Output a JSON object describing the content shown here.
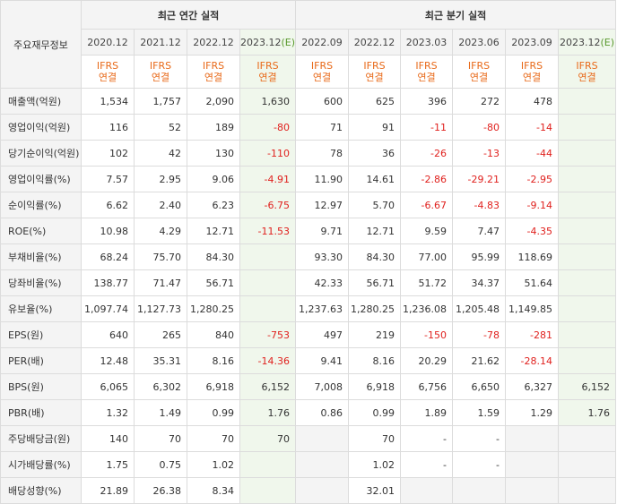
{
  "header": {
    "label": "주요재무정보",
    "annual": "최근 연간 실적",
    "quarter": "최근 분기 실적"
  },
  "periods": [
    {
      "label": "2020.12",
      "estimate": false
    },
    {
      "label": "2021.12",
      "estimate": false
    },
    {
      "label": "2022.12",
      "estimate": false
    },
    {
      "label": "2023.12(E)",
      "estimate": true
    },
    {
      "label": "2022.09",
      "estimate": false
    },
    {
      "label": "2022.12",
      "estimate": false
    },
    {
      "label": "2023.03",
      "estimate": false
    },
    {
      "label": "2023.06",
      "estimate": false
    },
    {
      "label": "2023.09",
      "estimate": false
    },
    {
      "label": "2023.12(E)",
      "estimate": true
    }
  ],
  "ifrs": {
    "line1": "IFRS",
    "line2": "연결"
  },
  "rows": [
    {
      "label": "매출액(억원)",
      "values": [
        "1,534",
        "1,757",
        "2,090",
        "1,630",
        "600",
        "625",
        "396",
        "272",
        "478",
        ""
      ]
    },
    {
      "label": "영업이익(억원)",
      "values": [
        "116",
        "52",
        "189",
        "-80",
        "71",
        "91",
        "-11",
        "-80",
        "-14",
        ""
      ]
    },
    {
      "label": "당기순이익(억원)",
      "values": [
        "102",
        "42",
        "130",
        "-110",
        "78",
        "36",
        "-26",
        "-13",
        "-44",
        ""
      ]
    },
    {
      "label": "영업이익률(%)",
      "values": [
        "7.57",
        "2.95",
        "9.06",
        "-4.91",
        "11.90",
        "14.61",
        "-2.86",
        "-29.21",
        "-2.95",
        ""
      ]
    },
    {
      "label": "순이익률(%)",
      "values": [
        "6.62",
        "2.40",
        "6.23",
        "-6.75",
        "12.97",
        "5.70",
        "-6.67",
        "-4.83",
        "-9.14",
        ""
      ]
    },
    {
      "label": "ROE(%)",
      "values": [
        "10.98",
        "4.29",
        "12.71",
        "-11.53",
        "9.71",
        "12.71",
        "9.59",
        "7.47",
        "-4.35",
        ""
      ]
    },
    {
      "label": "부채비율(%)",
      "values": [
        "68.24",
        "75.70",
        "84.30",
        "",
        "93.30",
        "84.30",
        "77.00",
        "95.99",
        "118.69",
        ""
      ]
    },
    {
      "label": "당좌비율(%)",
      "values": [
        "138.77",
        "71.47",
        "56.71",
        "",
        "42.33",
        "56.71",
        "51.72",
        "34.37",
        "51.64",
        ""
      ]
    },
    {
      "label": "유보율(%)",
      "values": [
        "1,097.74",
        "1,127.73",
        "1,280.25",
        "",
        "1,237.63",
        "1,280.25",
        "1,236.08",
        "1,205.48",
        "1,149.85",
        ""
      ]
    },
    {
      "label": "EPS(원)",
      "values": [
        "640",
        "265",
        "840",
        "-753",
        "497",
        "219",
        "-150",
        "-78",
        "-281",
        ""
      ]
    },
    {
      "label": "PER(배)",
      "values": [
        "12.48",
        "35.31",
        "8.16",
        "-14.36",
        "9.41",
        "8.16",
        "20.29",
        "21.62",
        "-28.14",
        ""
      ]
    },
    {
      "label": "BPS(원)",
      "values": [
        "6,065",
        "6,302",
        "6,918",
        "6,152",
        "7,008",
        "6,918",
        "6,756",
        "6,650",
        "6,327",
        "6,152"
      ]
    },
    {
      "label": "PBR(배)",
      "values": [
        "1.32",
        "1.49",
        "0.99",
        "1.76",
        "0.86",
        "0.99",
        "1.89",
        "1.59",
        "1.29",
        "1.76"
      ]
    },
    {
      "label": "주당배당금(원)",
      "values": [
        "140",
        "70",
        "70",
        "70",
        "",
        "70",
        "-",
        "-",
        "",
        ""
      ]
    },
    {
      "label": "시가배당률(%)",
      "values": [
        "1.75",
        "0.75",
        "1.02",
        "",
        "",
        "1.02",
        "-",
        "-",
        "",
        ""
      ]
    },
    {
      "label": "배당성향(%)",
      "values": [
        "21.89",
        "26.38",
        "8.34",
        "",
        "",
        "32.01",
        "",
        "",
        "",
        ""
      ]
    }
  ],
  "empty_cells": {
    "13": [
      4,
      8,
      9
    ],
    "14": [
      4,
      8,
      9
    ],
    "15": [
      4,
      6,
      7,
      8,
      9
    ]
  },
  "colors": {
    "negative": "#e0211e",
    "ifrs": "#e86a1a",
    "estimate_bg": "#f0f7ec",
    "estimate_text": "#5a9a2e"
  }
}
